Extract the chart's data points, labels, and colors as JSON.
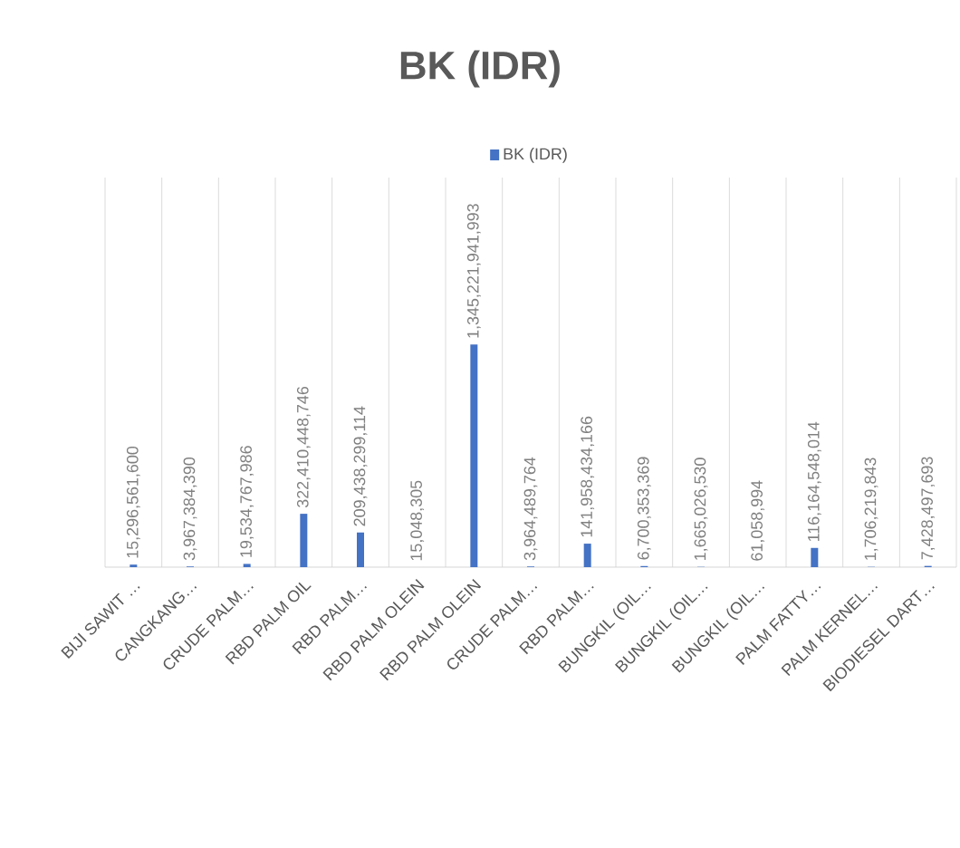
{
  "chart_data": {
    "type": "bar",
    "title": "BK (IDR)",
    "categories": [
      "BIJI SAWIT …",
      "CANGKANG…",
      "CRUDE PALM…",
      "RBD PALM OIL",
      "RBD PALM…",
      "RBD PALM OLEIN",
      "RBD PALM OLEIN",
      "CRUDE PALM…",
      "RBD PALM…",
      "BUNGKIL (OIL…",
      "BUNGKIL (OIL…",
      "BUNGKIL (OIL…",
      "PALM FATTY…",
      "PALM KERNEL…",
      "BIODIESEL DART…"
    ],
    "series": [
      {
        "name": "BK (IDR)",
        "color": "#4472c4",
        "values": [
          15296561600,
          3967384390,
          19534767986,
          322410448746,
          209438299114,
          15048305,
          1345221941993,
          3964489764,
          141958434166,
          6700353369,
          1665026530,
          61058994,
          116164548014,
          1706219843,
          7428497693
        ],
        "value_labels": [
          "15,296,561,600",
          "3,967,384,390",
          "19,534,767,986",
          "322,410,448,746",
          "209,438,299,114",
          "15,048,305",
          "1,345,221,941,993",
          "3,964,489,764",
          "141,958,434,166",
          "6,700,353,369",
          "1,665,026,530",
          "61,058,994",
          "116,164,548,014",
          "1,706,219,843",
          "7,428,497,693"
        ]
      }
    ],
    "grid": "x",
    "legend": "top"
  }
}
